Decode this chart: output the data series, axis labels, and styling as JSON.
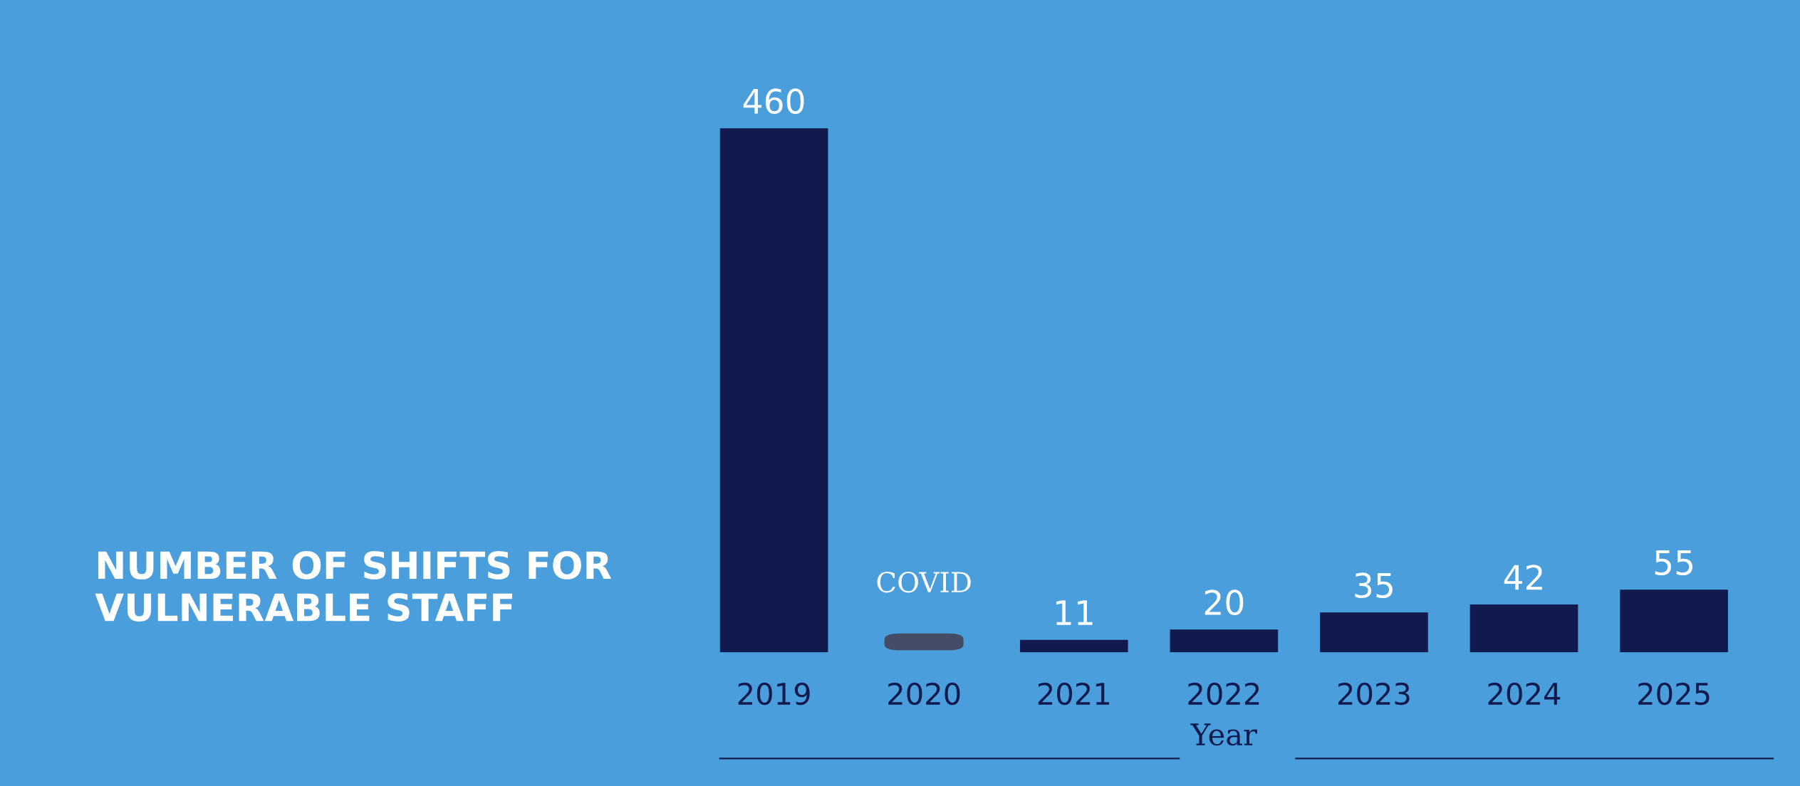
{
  "chart_data": {
    "type": "bar",
    "title": "NUMBER OF SHIFTS FOR VULNERABLE STAFF",
    "xlabel": "Year",
    "categories": [
      "2019",
      "2020",
      "2021",
      "2022",
      "2023",
      "2024",
      "2025"
    ],
    "values": [
      460,
      null,
      11,
      20,
      35,
      42,
      55
    ],
    "color": "#101a4e",
    "data_labels": true,
    "tick_labels": "x",
    "grid": false,
    "annotations": [
      "COVID"
    ]
  }
}
